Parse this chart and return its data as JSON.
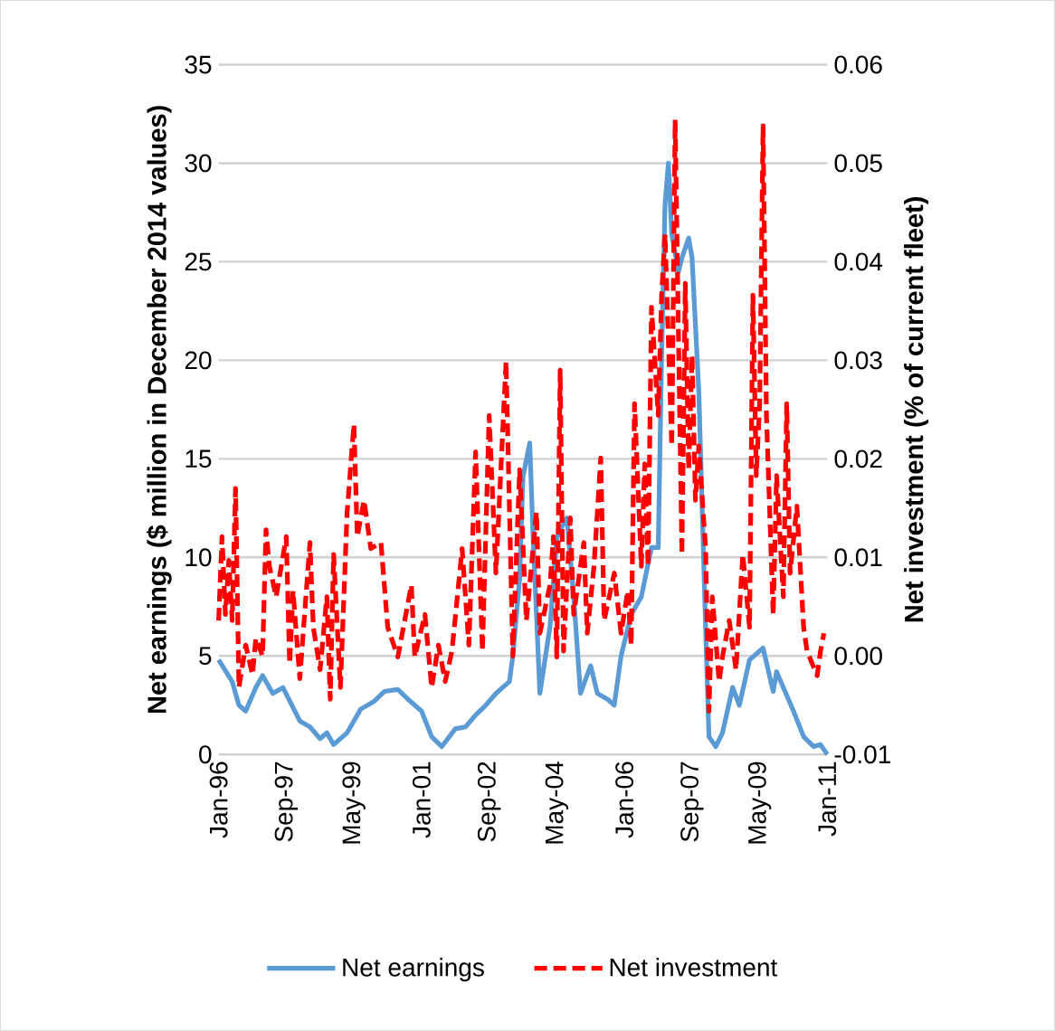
{
  "chart_data": {
    "type": "line",
    "ylabel": "Net earnings ($ million in December 2014 values)",
    "y2label": "Net investment (% of current fleet)",
    "xlim": [
      "1996-01",
      "2011-01"
    ],
    "xticks": [
      {
        "value": "1996-01",
        "label": "Jan-96"
      },
      {
        "value": "1997-09",
        "label": "Sep-97"
      },
      {
        "value": "1999-05",
        "label": "May-99"
      },
      {
        "value": "2001-01",
        "label": "Jan-01"
      },
      {
        "value": "2002-09",
        "label": "Sep-02"
      },
      {
        "value": "2004-05",
        "label": "May-04"
      },
      {
        "value": "2006-01",
        "label": "Jan-06"
      },
      {
        "value": "2007-09",
        "label": "Sep-07"
      },
      {
        "value": "2009-05",
        "label": "May-09"
      },
      {
        "value": "2011-01",
        "label": "Jan-11"
      }
    ],
    "ylim": [
      0,
      35
    ],
    "yticks": [
      0,
      5,
      10,
      15,
      20,
      25,
      30,
      35
    ],
    "y2lim": [
      -0.01,
      0.06
    ],
    "y2ticks": [
      {
        "value": -0.01,
        "label": "-0.01"
      },
      {
        "value": 0,
        "label": "0.00"
      },
      {
        "value": 0.01,
        "label": "0.01"
      },
      {
        "value": 0.02,
        "label": "0.02"
      },
      {
        "value": 0.03,
        "label": "0.03"
      },
      {
        "value": 0.04,
        "label": "0.04"
      },
      {
        "value": 0.05,
        "label": "0.05"
      },
      {
        "value": 0.06,
        "label": "0.06"
      }
    ],
    "grid": "y",
    "legend": "bottom",
    "series": [
      {
        "name": "Net earnings",
        "color": "#5b9bd5",
        "line_style": "solid",
        "x": [
          "1996-01",
          "1996-05",
          "1996-07",
          "1996-09",
          "1996-12",
          "1997-02",
          "1997-05",
          "1997-08",
          "1998-01",
          "1998-04",
          "1998-07",
          "1998-09",
          "1998-11",
          "1999-03",
          "1999-07",
          "1999-11",
          "2000-02",
          "2000-06",
          "2000-09",
          "2001-01",
          "2001-04",
          "2001-07",
          "2001-11",
          "2002-02",
          "2002-05",
          "2002-08",
          "2002-11",
          "2003-03",
          "2003-04",
          "2003-06",
          "2003-07",
          "2003-09",
          "2003-10",
          "2003-12",
          "2004-03",
          "2004-05",
          "2004-06",
          "2004-08",
          "2004-10",
          "2004-12",
          "2005-03",
          "2005-05",
          "2005-08",
          "2005-10",
          "2005-12",
          "2006-03",
          "2006-06",
          "2006-09",
          "2006-11",
          "2006-12",
          "2007-01",
          "2007-02",
          "2007-03",
          "2007-05",
          "2007-06",
          "2007-08",
          "2007-09",
          "2007-11",
          "2008-01",
          "2008-02",
          "2008-04",
          "2008-06",
          "2008-09",
          "2008-11",
          "2009-02",
          "2009-06",
          "2009-09",
          "2009-10",
          "2010-03",
          "2010-06",
          "2010-09",
          "2010-11",
          "2011-01"
        ],
        "values": [
          4.8,
          3.7,
          2.5,
          2.2,
          3.4,
          4.0,
          3.1,
          3.4,
          1.7,
          1.4,
          0.8,
          1.1,
          0.5,
          1.1,
          2.3,
          2.7,
          3.2,
          3.3,
          2.8,
          2.2,
          0.9,
          0.4,
          1.3,
          1.4,
          2.0,
          2.5,
          3.1,
          3.7,
          5.0,
          8.9,
          14.1,
          15.8,
          11.0,
          3.1,
          6.5,
          11.0,
          11.4,
          12.0,
          8.0,
          3.1,
          4.5,
          3.1,
          2.8,
          2.5,
          5.0,
          7.1,
          8.0,
          10.5,
          10.5,
          20.2,
          27.9,
          30.0,
          26.4,
          24.5,
          25.2,
          26.2,
          25.2,
          18.4,
          6.5,
          0.9,
          0.4,
          1.1,
          3.4,
          2.5,
          4.8,
          5.4,
          3.2,
          4.2,
          2.2,
          0.9,
          0.4,
          0.5,
          0.0
        ]
      },
      {
        "name": "Net investment",
        "color": "#ff0000",
        "line_style": "dashed",
        "axis": "y2",
        "x": [
          "1996-01",
          "1996-02",
          "1996-03",
          "1996-04",
          "1996-05",
          "1996-06",
          "1996-07",
          "1996-09",
          "1996-11",
          "1996-12",
          "1997-02",
          "1997-03",
          "1997-04",
          "1997-06",
          "1997-09",
          "1997-10",
          "1997-11",
          "1998-01",
          "1998-04",
          "1998-05",
          "1998-07",
          "1998-09",
          "1998-10",
          "1998-11",
          "1999-01",
          "1999-03",
          "1999-05",
          "1999-06",
          "1999-08",
          "1999-10",
          "2000-01",
          "2000-03",
          "2000-06",
          "2000-10",
          "2000-11",
          "2001-02",
          "2001-04",
          "2001-06",
          "2001-08",
          "2001-10",
          "2002-01",
          "2002-03",
          "2002-05",
          "2002-07",
          "2002-09",
          "2002-11",
          "2003-02",
          "2003-04",
          "2003-06",
          "2003-08",
          "2003-11",
          "2003-12",
          "2004-03",
          "2004-04",
          "2004-05",
          "2004-06",
          "2004-07",
          "2004-09",
          "2004-10",
          "2005-01",
          "2005-02",
          "2005-04",
          "2005-06",
          "2005-07",
          "2005-10",
          "2005-12",
          "2006-02",
          "2006-03",
          "2006-04",
          "2006-06",
          "2006-07",
          "2006-08",
          "2006-09",
          "2006-11",
          "2006-12",
          "2007-01",
          "2007-03",
          "2007-04",
          "2007-06",
          "2007-07",
          "2007-08",
          "2007-09",
          "2007-10",
          "2007-11",
          "2008-01",
          "2008-02",
          "2008-03",
          "2008-05",
          "2008-06",
          "2008-08",
          "2008-10",
          "2008-12",
          "2009-02",
          "2009-03",
          "2009-04",
          "2009-05",
          "2009-06",
          "2009-07",
          "2009-09",
          "2009-10",
          "2009-12",
          "2010-01",
          "2010-02",
          "2010-04",
          "2010-06",
          "2010-07",
          "2010-10",
          "2010-11",
          "2010-12"
        ],
        "values": [
          0.0036,
          0.0121,
          0.0042,
          0.0097,
          0.0036,
          0.017,
          -0.0032,
          0.0011,
          -0.0019,
          0.0018,
          0.0,
          0.0128,
          0.0091,
          0.006,
          0.0121,
          -0.0008,
          0.0066,
          -0.0023,
          0.0115,
          0.0029,
          -0.0014,
          0.006,
          -0.0044,
          0.0103,
          -0.0032,
          0.0146,
          0.0235,
          0.0121,
          0.0158,
          0.0109,
          0.0115,
          0.0029,
          -0.0001,
          0.0072,
          -0.0001,
          0.0042,
          -0.0032,
          0.0011,
          -0.0026,
          0.0005,
          0.0109,
          0.0011,
          0.0207,
          0.0005,
          0.0244,
          0.0084,
          0.0299,
          0.0,
          0.0189,
          0.0036,
          0.0146,
          0.0023,
          0.0072,
          0.0121,
          -0.0001,
          0.029,
          0.0005,
          0.014,
          0.0042,
          0.0115,
          0.0023,
          0.0091,
          0.0201,
          0.0036,
          0.0084,
          0.0023,
          0.0066,
          0.0011,
          0.0256,
          0.0091,
          0.0195,
          0.0091,
          0.0354,
          0.0244,
          0.0366,
          0.0428,
          0.0213,
          0.0544,
          0.0103,
          0.0378,
          0.0189,
          0.0305,
          0.0158,
          0.0213,
          0.0109,
          -0.0056,
          0.006,
          -0.0026,
          -0.0001,
          0.0036,
          -0.0014,
          0.0103,
          0.0029,
          0.0366,
          0.0183,
          0.0256,
          0.0538,
          0.0244,
          0.0042,
          0.0183,
          0.006,
          0.0256,
          0.0084,
          0.0152,
          0.0029,
          0.0005,
          -0.002,
          0.0005,
          0.0023
        ]
      }
    ]
  }
}
